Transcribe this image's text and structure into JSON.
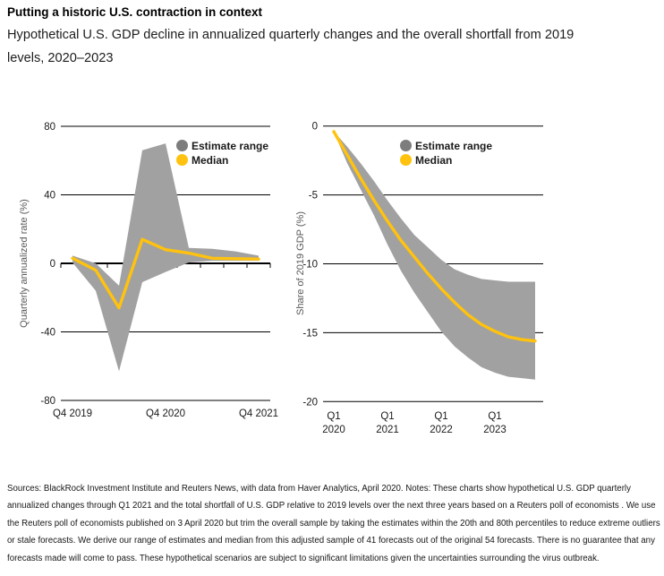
{
  "header": {
    "title": "Putting a historic U.S. contraction in context",
    "subtitle": "Hypothetical U.S. GDP decline in annualized quarterly changes and the overall shortfall from 2019 levels, 2020–2023"
  },
  "legend": {
    "range_label": "Estimate range",
    "median_label": "Median"
  },
  "colors": {
    "band_gray": "#a1a1a1",
    "legend_dot_gray": "#7d7d7d",
    "median_yellow": "#ffc20e",
    "grid_black": "#000000",
    "tick_text": "#1a1a1a",
    "axis_title_gray": "#595959"
  },
  "chart_data": [
    {
      "type": "area",
      "ylabel": "Quarterly annualized rate (%)",
      "ylim": [
        -80,
        80
      ],
      "yticks": [
        80,
        40,
        0,
        -40,
        -80
      ],
      "grid": "horizontal-only",
      "legend_position": "top-right-inside",
      "categories": [
        "Q4 2019",
        "Q1 2020",
        "Q2 2020",
        "Q3 2020",
        "Q4 2020",
        "Q1 2021",
        "Q2 2021",
        "Q3 2021",
        "Q4 2021"
      ],
      "xtick_labels": [
        "Q4 2019",
        "Q4 2020",
        "Q4 2021"
      ],
      "xtick_indices": [
        0,
        4,
        8
      ],
      "series": [
        {
          "name": "Estimate range",
          "type": "band",
          "upper": [
            4.5,
            0,
            -13,
            66,
            70,
            9,
            8.5,
            7,
            4.5
          ],
          "lower": [
            0.5,
            -16,
            -63,
            -11,
            -5,
            0.5,
            1.5,
            1.5,
            1.5
          ]
        },
        {
          "name": "Median",
          "type": "line",
          "values": [
            3,
            -4,
            -26,
            14,
            8,
            6,
            3,
            2.7,
            2.5
          ]
        }
      ]
    },
    {
      "type": "area",
      "ylabel": "Share of 2019 GDP (%)",
      "ylim": [
        -20,
        0
      ],
      "yticks": [
        0,
        -5,
        -10,
        -15,
        -20
      ],
      "grid": "horizontal-only",
      "legend_position": "top-right-inside",
      "categories": [
        "Q1 2020",
        "Q2 2020",
        "Q3 2020",
        "Q4 2020",
        "Q1 2021",
        "Q2 2021",
        "Q3 2021",
        "Q4 2021",
        "Q1 2022",
        "Q2 2022",
        "Q3 2022",
        "Q4 2022",
        "Q1 2023",
        "Q2 2023",
        "Q3 2023",
        "Q4 2023"
      ],
      "xtick_labels": [
        [
          "Q1",
          "2020"
        ],
        [
          "Q1",
          "2021"
        ],
        [
          "Q1",
          "2022"
        ],
        [
          "Q1",
          "2023"
        ]
      ],
      "xtick_indices": [
        0,
        4,
        8,
        12
      ],
      "series": [
        {
          "name": "Estimate range",
          "type": "band",
          "upper": [
            -0.4,
            -1.5,
            -2.7,
            -4.0,
            -5.4,
            -6.7,
            -7.9,
            -8.8,
            -9.7,
            -10.4,
            -10.8,
            -11.1,
            -11.2,
            -11.3,
            -11.3,
            -11.3
          ],
          "lower": [
            -0.4,
            -2.7,
            -4.6,
            -6.5,
            -8.6,
            -10.5,
            -12.1,
            -13.5,
            -14.9,
            -16.0,
            -16.8,
            -17.5,
            -17.9,
            -18.2,
            -18.3,
            -18.4
          ]
        },
        {
          "name": "Median",
          "type": "line",
          "values": [
            -0.4,
            -2.1,
            -3.8,
            -5.4,
            -6.9,
            -8.3,
            -9.5,
            -10.7,
            -11.8,
            -12.8,
            -13.7,
            -14.4,
            -14.9,
            -15.3,
            -15.5,
            -15.6
          ]
        }
      ]
    }
  ],
  "footer": {
    "notes": "Sources: BlackRock Investment Institute and Reuters News, with data from Haver Analytics, April 2020. Notes: These charts show hypothetical U.S. GDP quarterly annualized changes through Q1 2021 and the total shortfall of U.S. GDP relative to 2019 levels over the next three years based on a Reuters poll of economists . We use the Reuters poll of economists published on 3 April 2020 but trim the overall sample by taking the estimates within the 20th and 80th percentiles to reduce extreme outliers or stale forecasts. We derive our range of estimates and median from this adjusted sample of 41 forecasts out of the original 54 forecasts. There is no guarantee that any forecasts made will come to pass. These hypothetical scenarios are subject to significant limitations given the uncertainties surrounding the virus outbreak."
  }
}
